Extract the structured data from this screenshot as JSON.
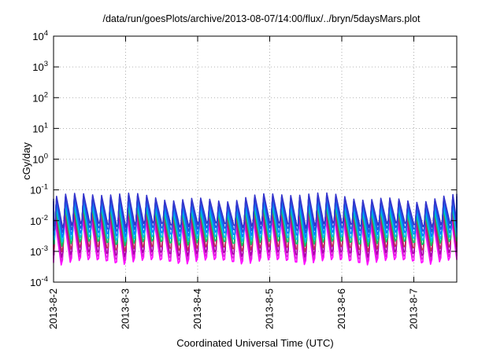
{
  "chart_data": {
    "type": "line",
    "title": "/data/run/goesPlots/archive/2013-08-07/14:00/flux/../bryn/5daysMars.plot",
    "xlabel": "Coordinated Universal Time (UTC)",
    "ylabel": "cGy/day",
    "yscale": "log",
    "grid": true,
    "xlim": [
      "2013-08-02",
      "2013-08-07T14:00"
    ],
    "ylim": [
      0.0001,
      10000
    ],
    "x_ticks": [
      "2013-8-2",
      "2013-8-3",
      "2013-8-4",
      "2013-8-5",
      "2013-8-6",
      "2013-8-7"
    ],
    "y_ticks": [
      {
        "value": 0.0001,
        "mant": "10",
        "exp": "-4"
      },
      {
        "value": 0.001,
        "mant": "10",
        "exp": "-3"
      },
      {
        "value": 0.01,
        "mant": "10",
        "exp": "-2"
      },
      {
        "value": 0.1,
        "mant": "10",
        "exp": "-1"
      },
      {
        "value": 1,
        "mant": "10",
        "exp": "0"
      },
      {
        "value": 10,
        "mant": "10",
        "exp": "1"
      },
      {
        "value": 100,
        "mant": "10",
        "exp": "2"
      },
      {
        "value": 1000,
        "mant": "10",
        "exp": "3"
      },
      {
        "value": 10000,
        "mant": "10",
        "exp": "4"
      }
    ],
    "pattern_note_colors": [
      "#ff00ff",
      "#dd22dd",
      "#aa00aa",
      "#c0305a",
      "#00cc66",
      "#0080ff",
      "#00bbee",
      "#2255dd",
      "#3333cc"
    ],
    "series": [
      {
        "color": "#ff00ff",
        "peak": 0.01,
        "trough": 0.00045,
        "phase": 0.0
      },
      {
        "color": "#dd22dd",
        "peak": 0.012,
        "trough": 0.0006,
        "phase": 0.02
      },
      {
        "color": "#aa00aa",
        "peak": 0.016,
        "trough": 0.0008,
        "phase": 0.04
      },
      {
        "color": "#c0305a",
        "peak": 0.02,
        "trough": 0.0012,
        "phase": 0.06
      },
      {
        "color": "#00cc66",
        "peak": 0.025,
        "trough": 0.0018,
        "phase": 0.08
      },
      {
        "color": "#00bbee",
        "peak": 0.032,
        "trough": 0.0025,
        "phase": 0.1
      },
      {
        "color": "#0080ff",
        "peak": 0.04,
        "trough": 0.0035,
        "phase": 0.12
      },
      {
        "color": "#2255dd",
        "peak": 0.05,
        "trough": 0.005,
        "phase": 0.14
      },
      {
        "color": "#3333cc",
        "peak": 0.06,
        "trough": 0.007,
        "phase": 0.16
      }
    ],
    "cycles_per_day": 8
  }
}
